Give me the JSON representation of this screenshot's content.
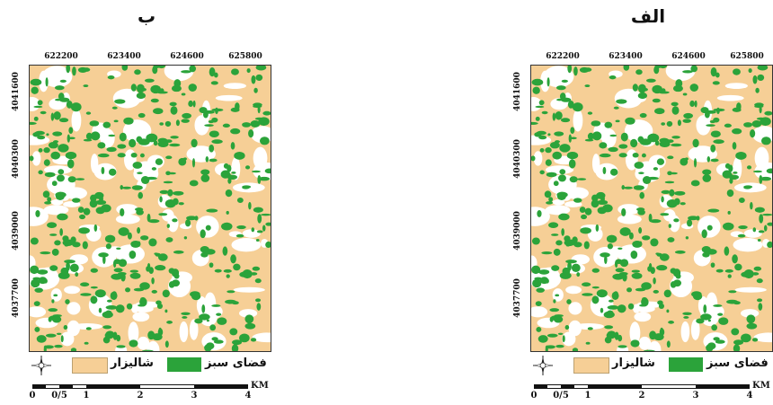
{
  "panels": [
    {
      "title": "ب",
      "x_ticks": [
        "622200",
        "623400",
        "624600",
        "625800"
      ],
      "y_ticks": [
        "4041600",
        "4040300",
        "4039000",
        "4037700"
      ],
      "legend": {
        "green_label": "فضای سبز",
        "paddy_label": "شالیزار"
      },
      "scale": {
        "labels": [
          "0",
          "0/5",
          "1",
          "2",
          "3",
          "4"
        ],
        "unit": "KM"
      }
    },
    {
      "title": "الف",
      "x_ticks": [
        "622200",
        "623400",
        "624600",
        "625800"
      ],
      "y_ticks": [
        "4041600",
        "4040300",
        "4039000",
        "4037700"
      ],
      "legend": {
        "green_label": "فضای سبز",
        "paddy_label": "شالیزار"
      },
      "scale": {
        "labels": [
          "0",
          "0/5",
          "1",
          "2",
          "3",
          "4"
        ],
        "unit": "KM"
      }
    }
  ],
  "colors": {
    "paddy": "#f6cf96",
    "green": "#2ba33a",
    "bare": "#ffffff",
    "frame": "#333333"
  },
  "icons": {
    "north_arrow": "north-arrow-icon"
  }
}
